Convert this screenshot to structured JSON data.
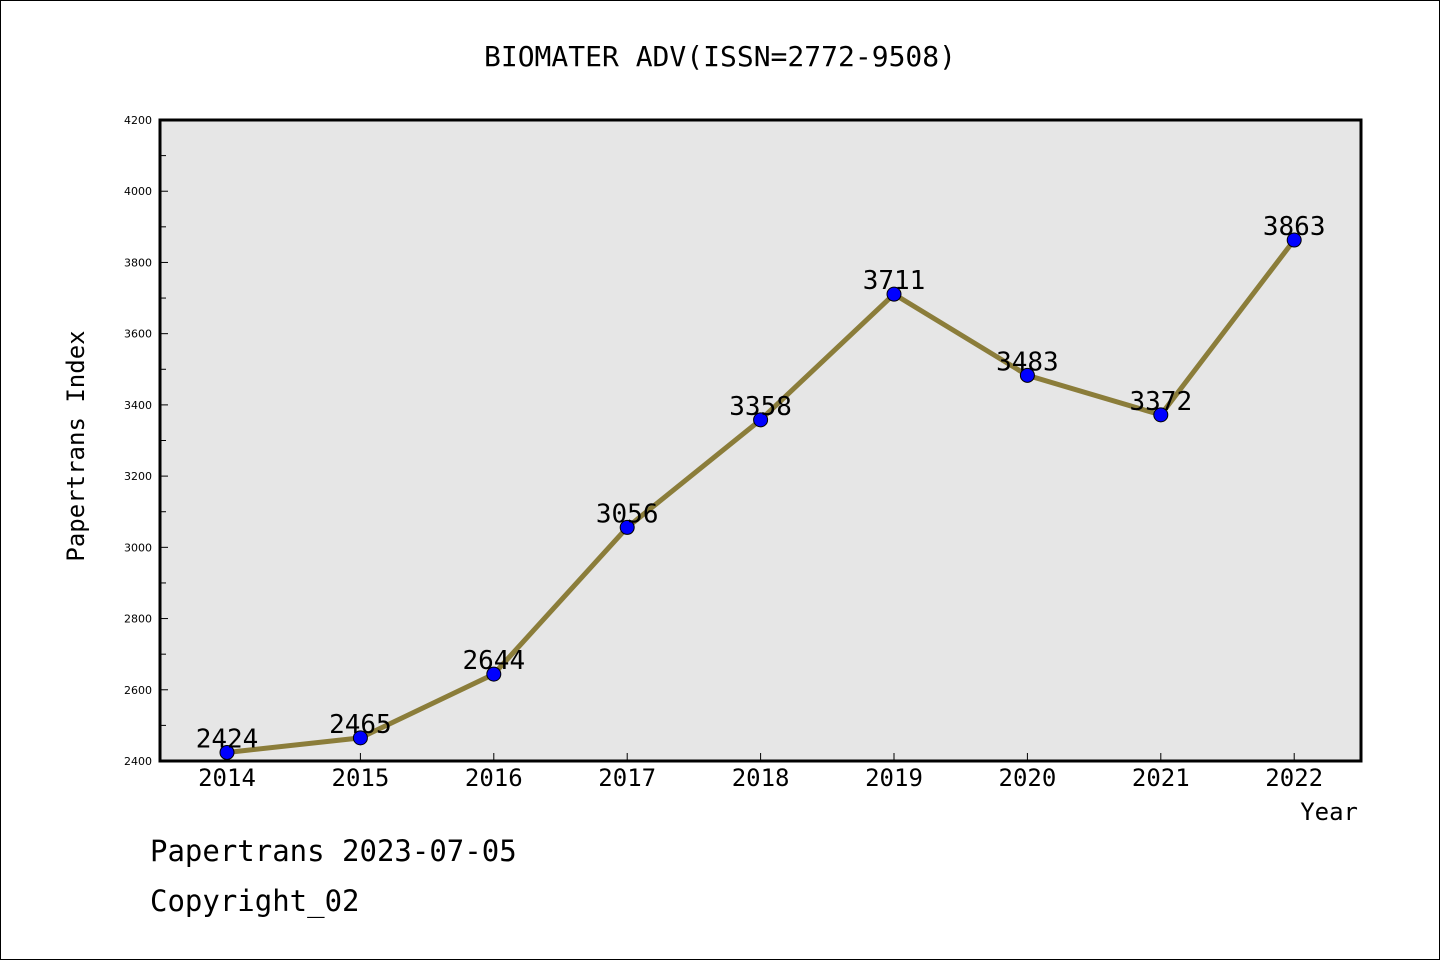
{
  "chart_data": {
    "type": "line",
    "title": "BIOMATER ADV(ISSN=2772-9508)",
    "xlabel": "Year",
    "ylabel": "Papertrans Index",
    "categories": [
      "2014",
      "2015",
      "2016",
      "2017",
      "2018",
      "2019",
      "2020",
      "2021",
      "2022"
    ],
    "values": [
      2424,
      2465,
      2644,
      3056,
      3358,
      3711,
      3483,
      3372,
      3863
    ],
    "data_labels": [
      "2424",
      "2465",
      "2644",
      "3056",
      "3358",
      "3711",
      "3483",
      "3372",
      "3863"
    ],
    "y_ticks": [
      "2400",
      "2600",
      "2800",
      "3000",
      "3200",
      "3400",
      "3600",
      "3800",
      "4000",
      "4200"
    ],
    "ylim": [
      2400,
      4200
    ],
    "grid": false,
    "legend": "none",
    "colors": {
      "line": "#8B7D3A",
      "marker": "#0000FF",
      "plot_background": "#E6E6E6"
    }
  },
  "footer": {
    "line1": "Papertrans 2023-07-05",
    "line2": "Copyright_02"
  }
}
